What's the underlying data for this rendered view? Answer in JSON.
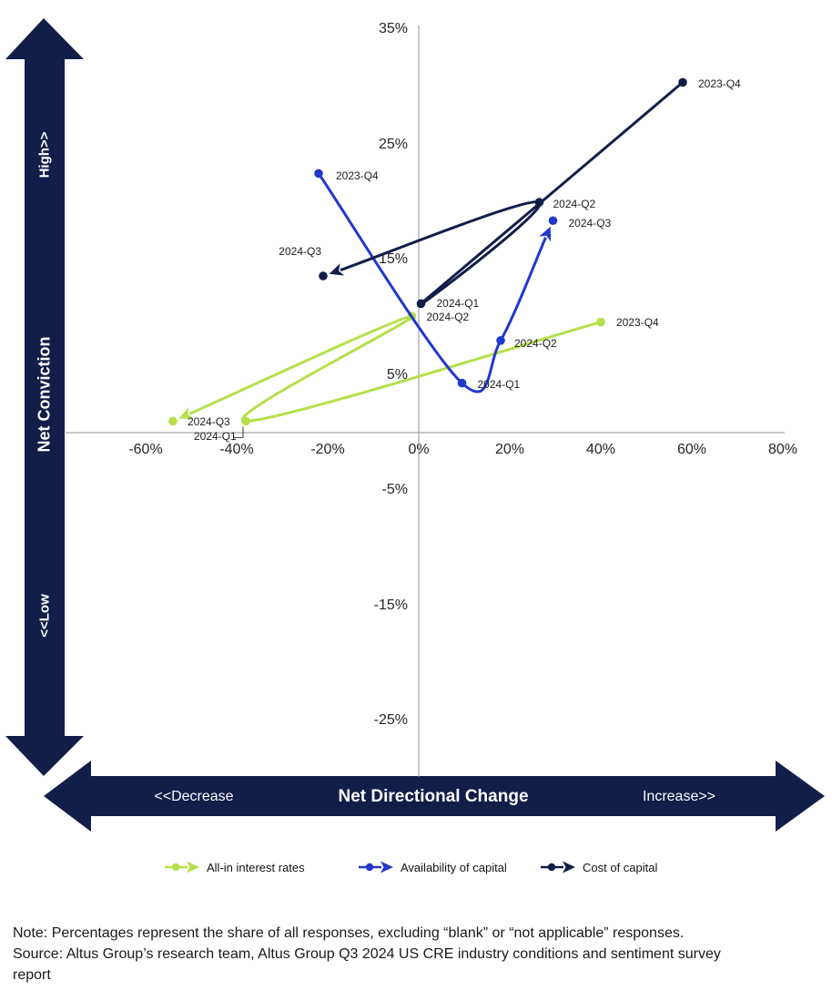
{
  "figure": {
    "y_axis_arrow": {
      "high_label": "High>>",
      "title": "Net Conviction",
      "low_label": "<<Low"
    },
    "x_axis_arrow": {
      "decrease_label": "<<Decrease",
      "title": "Net Directional Change",
      "increase_label": "Increase>>"
    }
  },
  "chart_data": {
    "type": "scatter",
    "line_style": "smooth-with-arrow-ends",
    "grid": "off",
    "x_axis": {
      "title": "Net Directional Change",
      "tick_labels": [
        "-60%",
        "-40%",
        "-20%",
        "0%",
        "20%",
        "40%",
        "60%",
        "80%"
      ],
      "tick_values": [
        -60,
        -40,
        -20,
        0,
        20,
        40,
        60,
        80
      ],
      "range_shown": [
        -80,
        80
      ]
    },
    "y_axis": {
      "title": "Net Conviction",
      "tick_labels": [
        "35%",
        "25%",
        "15%",
        "5%",
        "-5%",
        "-15%",
        "-25%"
      ],
      "tick_values": [
        35,
        25,
        15,
        5,
        -5,
        -15,
        -25
      ],
      "range_shown": [
        -30,
        37
      ]
    },
    "series": [
      {
        "name": "All-in interest rates",
        "color": "#b5e049",
        "arrow_end": true,
        "points": [
          {
            "label": "2023-Q4",
            "x": 40,
            "y": 9.6,
            "dx": 17,
            "dy": 0
          },
          {
            "label": "2024-Q1",
            "x": -38,
            "y": 1.0,
            "dx": -57,
            "dy": 17,
            "connector": true
          },
          {
            "label": "2024-Q2",
            "x": -1.5,
            "y": 10.1,
            "dx": 16,
            "dy": 1
          },
          {
            "label": "2024-Q3",
            "x": -54,
            "y": 1.0,
            "dx": 16,
            "dy": 1
          }
        ]
      },
      {
        "name": "Availability of capital",
        "color": "#2238cc",
        "arrow_end": true,
        "points": [
          {
            "label": "2023-Q4",
            "x": -22,
            "y": 22.5,
            "dx": 19,
            "dy": 3
          },
          {
            "label": "2024-Q1",
            "x": 9.5,
            "y": 4.3,
            "dx": 17,
            "dy": 1
          },
          {
            "label": "2024-Q2",
            "x": 18,
            "y": 8.0,
            "dx": 15,
            "dy": 3
          },
          {
            "label": "2024-Q3",
            "x": 29.5,
            "y": 18.4,
            "dx": 17,
            "dy": 3
          }
        ]
      },
      {
        "name": "Cost of capital",
        "color": "#121d49",
        "arrow_end": true,
        "points": [
          {
            "label": "2023-Q4",
            "x": 58,
            "y": 30.4,
            "dx": 17,
            "dy": 2
          },
          {
            "label": "2024-Q1",
            "x": 0.5,
            "y": 11.2,
            "dx": 17,
            "dy": 0
          },
          {
            "label": "2024-Q2",
            "x": 26.5,
            "y": 20.0,
            "dx": 15,
            "dy": 2
          },
          {
            "label": "2024-Q3",
            "x": -21,
            "y": 13.6,
            "dx": -2,
            "dy": -27,
            "anchor": "end"
          }
        ]
      }
    ]
  },
  "footnote": {
    "lines": [
      "Note: Percentages represent the share of all responses, excluding “blank” or “not applicable” responses.",
      "Source: Altus Group’s research team, Altus Group Q3 2024 US CRE industry conditions and sentiment survey",
      "report"
    ]
  }
}
